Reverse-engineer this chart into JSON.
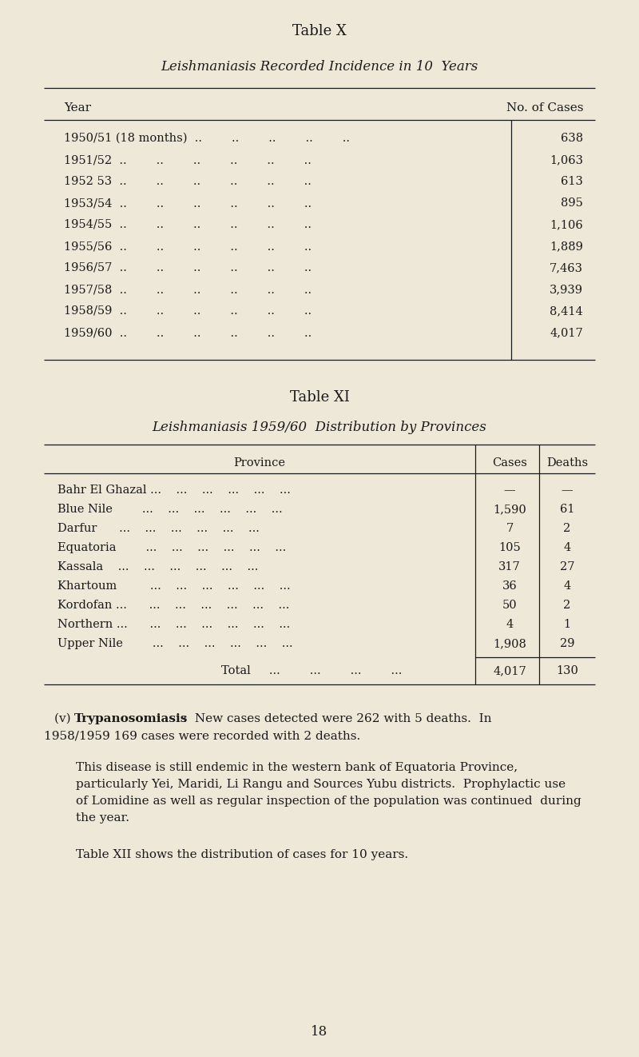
{
  "bg_color": "#ede8d8",
  "text_color": "#1a1a1a",
  "table_x_title": "Table X",
  "table_x_subtitle": "Leishmaniasis Recorded Incidence in 10  Years",
  "table_x_col1_header": "Year",
  "table_x_col2_header": "No. of Cases",
  "table_x_rows": [
    [
      "1950/51 (18 months)  ..        ..        ..        ..        ..",
      "638"
    ],
    [
      "1951/52  ..        ..        ..        ..        ..        ..",
      "1,063"
    ],
    [
      "1952 53  ..        ..        ..        ..        ..        ..",
      "613"
    ],
    [
      "1953/54  ..        ..        ..        ..        ..        ..",
      "895"
    ],
    [
      "1954/55  ..        ..        ..        ..        ..        ..",
      "1,106"
    ],
    [
      "1955/56  ..        ..        ..        ..        ..        ..",
      "1,889"
    ],
    [
      "1956/57  ..        ..        ..        ..        ..        ..",
      "7,463"
    ],
    [
      "1957/58  ..        ..        ..        ..        ..        ..",
      "3,939"
    ],
    [
      "1958/59  ..        ..        ..        ..        ..        ..",
      "8,414"
    ],
    [
      "1959/60  ..        ..        ..        ..        ..        ..",
      "4,017"
    ]
  ],
  "table_xi_title": "Table XI",
  "table_xi_subtitle": "Leishmaniasis 1959/60  Distribution by Provinces",
  "table_xi_col_province": "Province",
  "table_xi_col_cases": "Cases",
  "table_xi_col_deaths": "Deaths",
  "table_xi_rows": [
    [
      "Bahr El Ghazal ...    ...    ...    ...    ...    ...",
      "—",
      "—"
    ],
    [
      "Blue Nile        ...    ...    ...    ...    ...    ...",
      "1,590",
      "61"
    ],
    [
      "Darfur      ...    ...    ...    ...    ...    ...",
      "7",
      "2"
    ],
    [
      "Equatoria        ...    ...    ...    ...    ...    ...",
      "105",
      "4"
    ],
    [
      "Kassala    ...    ...    ...    ...    ...    ...",
      "317",
      "27"
    ],
    [
      "Khartoum         ...    ...    ...    ...    ...    ...",
      "36",
      "4"
    ],
    [
      "Kordofan ...      ...    ...    ...    ...    ...    ...",
      "50",
      "2"
    ],
    [
      "Northern ...      ...    ...    ...    ...    ...    ...",
      "4",
      "1"
    ],
    [
      "Upper Nile        ...    ...    ...    ...    ...    ...",
      "1,908",
      "29"
    ]
  ],
  "table_xi_total_label": "Total     ...        ...        ...        ...",
  "table_xi_total_cases": "4,017",
  "table_xi_total_deaths": "130",
  "para1_prefix": "(v) ",
  "para1_bold": "Trypanosomiasis",
  "para1_colon": " :  New cases detected were 262 with 5 deaths.  In",
  "para1_line2": "1958/1959 169 cases were recorded with 2 deaths.",
  "para2_lines": [
    "This disease is still endemic in the western bank of Equatoria Province,",
    "particularly Yei, Maridi, Li Rangu and Sources Yubu districts.  Prophylactic use",
    "of Lomidine as well as regular inspection of the population was continued  during",
    "the year."
  ],
  "para3": "Table XII shows the distribution of cases for 10 years.",
  "page_num": "18"
}
